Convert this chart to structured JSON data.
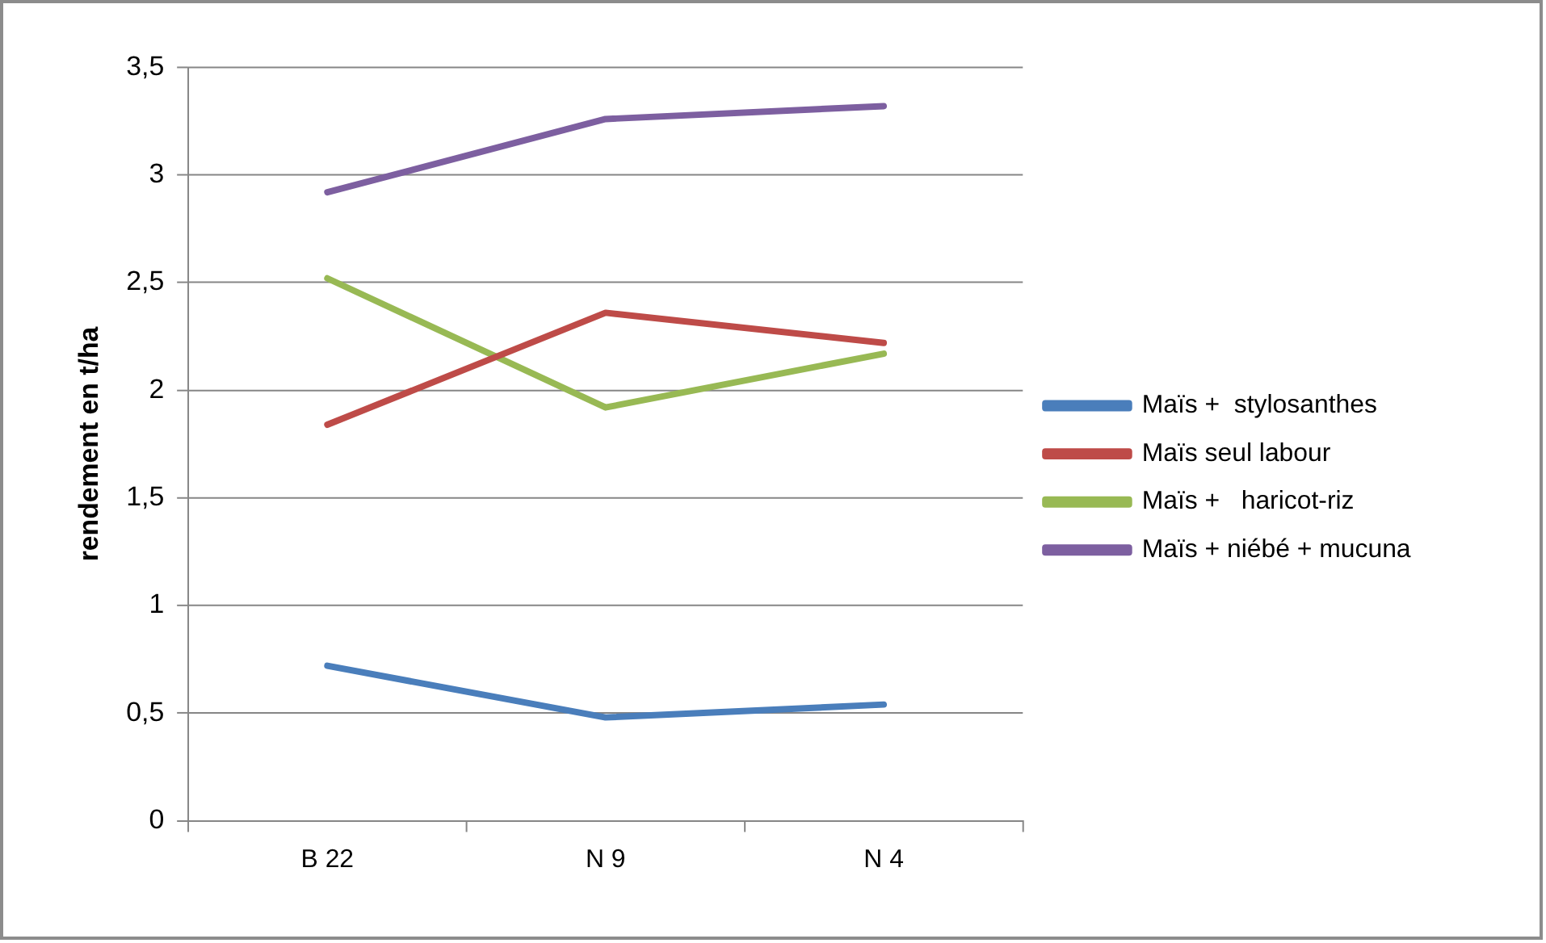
{
  "chart_data": {
    "type": "line",
    "ylabel": "rendement en t/ha",
    "categories": [
      "B 22",
      "N 9",
      "N 4"
    ],
    "series": [
      {
        "name": "Maïs +  stylosanthes",
        "color": "#4a7ebb",
        "values": [
          0.72,
          0.48,
          0.54
        ]
      },
      {
        "name": "Maïs seul labour",
        "color": "#be4b48",
        "values": [
          1.84,
          2.36,
          2.22
        ]
      },
      {
        "name": "Maïs +   haricot-riz",
        "color": "#98b954",
        "values": [
          2.52,
          1.92,
          2.17
        ]
      },
      {
        "name": "Maïs + niébé + mucuna",
        "color": "#7d5fa0",
        "values": [
          2.92,
          3.26,
          3.32
        ]
      }
    ],
    "ylim": [
      0,
      3.5
    ],
    "yticks": [
      {
        "value": 0,
        "label": "0"
      },
      {
        "value": 0.5,
        "label": "0,5"
      },
      {
        "value": 1,
        "label": "1"
      },
      {
        "value": 1.5,
        "label": "1,5"
      },
      {
        "value": 2,
        "label": "2"
      },
      {
        "value": 2.5,
        "label": "2,5"
      },
      {
        "value": 3,
        "label": "3"
      },
      {
        "value": 3.5,
        "label": "3,5"
      }
    ],
    "grid": "y",
    "legend": "right",
    "marker": "none",
    "line_style": "solid"
  }
}
